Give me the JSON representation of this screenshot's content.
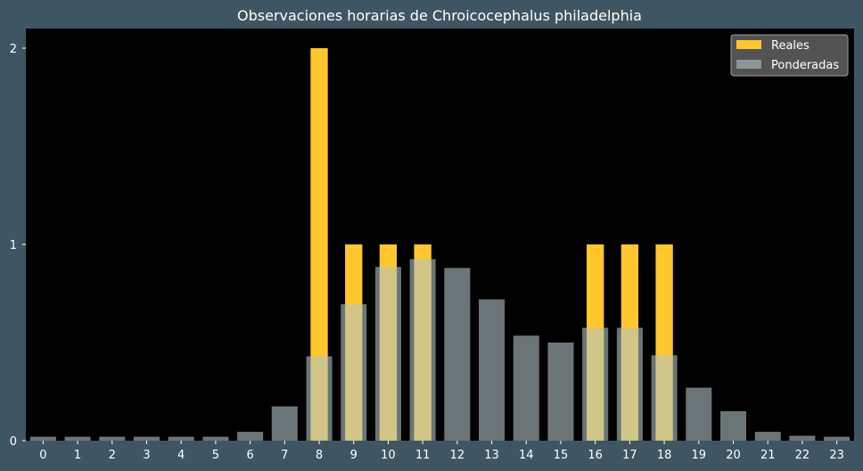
{
  "chart_data": {
    "type": "bar",
    "title": "Observaciones horarias de Chroicocephalus philadelphia",
    "xlabel": "",
    "ylabel": "",
    "categories": [
      "0",
      "1",
      "2",
      "3",
      "4",
      "5",
      "6",
      "7",
      "8",
      "9",
      "10",
      "11",
      "12",
      "13",
      "14",
      "15",
      "16",
      "17",
      "18",
      "19",
      "20",
      "21",
      "22",
      "23"
    ],
    "ylim": [
      0,
      2.1
    ],
    "yticks": [
      0,
      1,
      2
    ],
    "grid": false,
    "legend_position": "top-right",
    "series": [
      {
        "name": "Reales",
        "color": "#ffc72c",
        "values": [
          0,
          0,
          0,
          0,
          0,
          0,
          0,
          0,
          2,
          1,
          1,
          1,
          0,
          0,
          0,
          0,
          1,
          1,
          1,
          0,
          0,
          0,
          0,
          0
        ]
      },
      {
        "name": "Ponderadas",
        "color": "#b3c3c7",
        "opacity": 0.6,
        "values": [
          0.02,
          0.02,
          0.02,
          0.02,
          0.02,
          0.02,
          0.045,
          0.175,
          0.43,
          0.695,
          0.885,
          0.925,
          0.88,
          0.72,
          0.535,
          0.5,
          0.575,
          0.575,
          0.435,
          0.27,
          0.15,
          0.045,
          0.025,
          0.02
        ]
      }
    ]
  },
  "colors": {
    "page_background": "#3f5662",
    "plot_background": "#000000",
    "legend_background": "#575757"
  }
}
